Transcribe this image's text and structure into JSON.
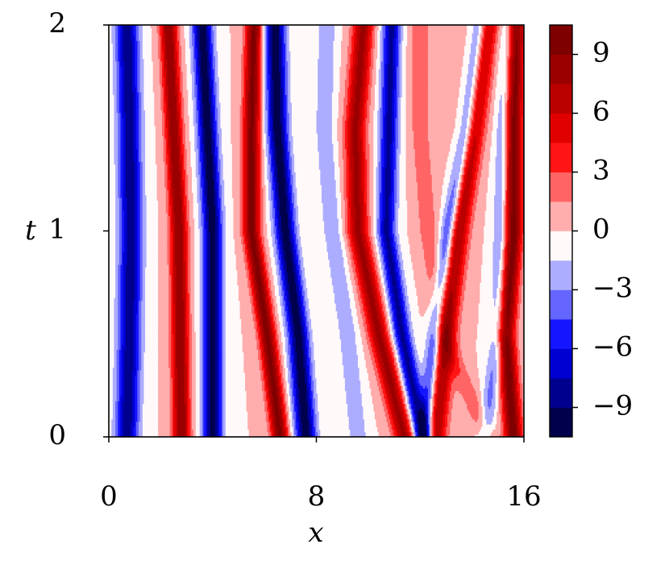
{
  "chart_data": {
    "type": "heatmap",
    "subtype": "filled-contour",
    "xlabel": "x",
    "ylabel": "t",
    "xlim": [
      0,
      16
    ],
    "ylim": [
      0,
      2
    ],
    "x_ticks": [
      "0",
      "8",
      "16"
    ],
    "y_ticks": [
      "0",
      "1",
      "2"
    ],
    "colorbar": {
      "cmap": "seismic",
      "range": [
        -10.5,
        10.5
      ],
      "ticks": [
        "−9",
        "−6",
        "−3",
        "0",
        "3",
        "6",
        "9"
      ],
      "levels": [
        -10.5,
        -9,
        -7.5,
        -6,
        -4.5,
        -3,
        -1.5,
        0,
        1.5,
        3,
        4.5,
        6,
        7.5,
        9,
        10.5
      ],
      "colors": [
        "#00004c",
        "#00008f",
        "#0000d3",
        "#1515ff",
        "#6565ff",
        "#adadff",
        "#fff9f9",
        "#ffadad",
        "#ff6565",
        "#ff1515",
        "#e00000",
        "#bb0000",
        "#9b0000",
        "#7f0000"
      ]
    },
    "field": {
      "description_of_bands": "stripe centres x(t) estimated from figure; positive = red, negative = blue",
      "t_samples": [
        0,
        0.5,
        1.0,
        1.5,
        2.0
      ],
      "bands": [
        {
          "sign": -1,
          "amplitude": 8.5,
          "width": 0.45,
          "x": [
            0.7,
            0.8,
            0.85,
            0.8,
            0.7
          ]
        },
        {
          "sign": 1,
          "amplitude": 9.0,
          "width": 0.33,
          "x": [
            2.8,
            2.75,
            2.7,
            2.5,
            2.3
          ]
        },
        {
          "sign": -1,
          "amplitude": 10.0,
          "width": 0.38,
          "x": [
            4.0,
            4.0,
            4.0,
            3.8,
            3.6
          ]
        },
        {
          "sign": 1,
          "amplitude": 9.5,
          "width": 0.33,
          "x": [
            6.6,
            6.1,
            5.5,
            5.5,
            5.6
          ]
        },
        {
          "sign": -1,
          "amplitude": 10.0,
          "width": 0.4,
          "x": [
            7.6,
            7.3,
            6.8,
            6.5,
            6.4
          ]
        },
        {
          "sign": -1,
          "amplitude": 3.0,
          "width": 0.35,
          "x": [
            9.6,
            9.2,
            8.6,
            8.3,
            8.4
          ]
        },
        {
          "sign": 1,
          "amplitude": 8.0,
          "width": 0.4,
          "x": [
            11.4,
            10.4,
            9.6,
            9.5,
            9.8
          ]
        },
        {
          "sign": -1,
          "amplitude": 8.0,
          "width": 0.35,
          "x": [
            12.1,
            11.3,
            10.7,
            10.8,
            10.9
          ]
        },
        {
          "sign": 1,
          "amplitude": 2.5,
          "width": 0.4,
          "x": [
            14.6,
            12.9,
            12.3,
            12.0,
            12.0
          ]
        },
        {
          "sign": 1,
          "amplitude": 9.5,
          "width": 0.45,
          "x": [
            12.5,
            12.9,
            13.4,
            14.0,
            14.5
          ]
        },
        {
          "sign": -1,
          "amplitude": 9.0,
          "width": 0.32,
          "x": [
            12.2,
            12.6,
            13.1,
            13.8,
            14.3
          ]
        },
        {
          "sign": 1,
          "amplitude": 10.0,
          "width": 0.35,
          "x": [
            15.6,
            15.3,
            15.6,
            15.6,
            15.7
          ]
        },
        {
          "sign": -1,
          "amplitude": 3.5,
          "width": 0.3,
          "x": [
            14.5,
            15.0,
            15.1,
            15.2,
            15.4
          ]
        }
      ]
    }
  }
}
